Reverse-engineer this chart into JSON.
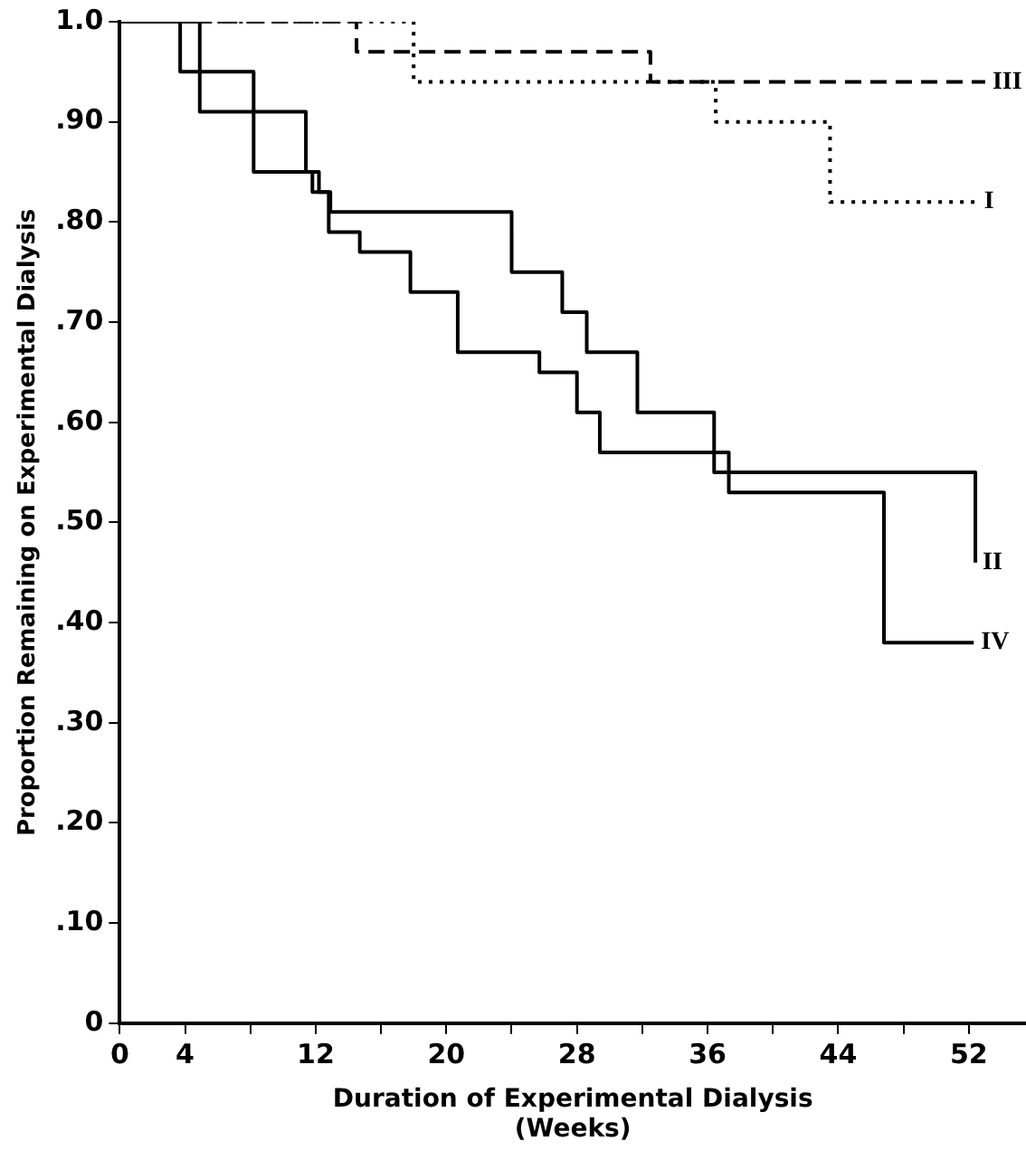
{
  "chart_data": {
    "type": "step",
    "xlabel": "Duration of Experimental Dialysis\n(Weeks)",
    "ylabel": "Proportion Remaining on Experimental Dialysis",
    "xlim": [
      0,
      55.5
    ],
    "xticks": [
      0,
      4,
      {
        "value": 8,
        "label": null
      },
      12,
      {
        "value": 16,
        "label": null
      },
      20,
      {
        "value": 24,
        "label": null
      },
      28,
      {
        "value": 32,
        "label": null
      },
      36,
      {
        "value": 40,
        "label": null
      },
      44,
      {
        "value": 48,
        "label": null
      },
      52
    ],
    "ylim": [
      0,
      1
    ],
    "yticks": [
      {
        "value": 0,
        "label": "0"
      },
      {
        "value": 0.1,
        "label": ".10"
      },
      {
        "value": 0.2,
        "label": ".20"
      },
      {
        "value": 0.3,
        "label": ".30"
      },
      {
        "value": 0.4,
        "label": ".40"
      },
      {
        "value": 0.5,
        "label": ".50"
      },
      {
        "value": 0.6,
        "label": ".60"
      },
      {
        "value": 0.7,
        "label": ".70"
      },
      {
        "value": 0.8,
        "label": ".80"
      },
      {
        "value": 0.9,
        "label": ".90"
      },
      {
        "value": 1,
        "label": "1.0"
      }
    ],
    "grid": false,
    "legend": false,
    "marker": "none",
    "series": [
      {
        "name": "I",
        "color": "#000000",
        "line_style": "dotted",
        "x": [
          0,
          18,
          36.5,
          43.5,
          52.5
        ],
        "values": [
          1,
          0.94,
          0.9,
          0.82,
          0.82
        ]
      },
      {
        "name": "II",
        "color": "#000000",
        "line_style": "solid",
        "x": [
          0,
          3.7,
          8.2,
          11.4,
          12.2,
          12.9,
          24,
          27.1,
          28.6,
          31.7,
          36.4,
          52.4
        ],
        "values": [
          1,
          0.95,
          0.91,
          0.85,
          0.83,
          0.81,
          0.75,
          0.71,
          0.67,
          0.61,
          0.55,
          0.46
        ]
      },
      {
        "name": "III",
        "color": "#000000",
        "line_style": "dashed",
        "x": [
          0,
          14.5,
          32.5,
          53
        ],
        "values": [
          1,
          0.97,
          0.94,
          0.94
        ]
      },
      {
        "name": "IV",
        "color": "#000000",
        "line_style": "solid",
        "x": [
          0,
          4.9,
          8.2,
          11.8,
          12.8,
          14.7,
          17.8,
          20.7,
          25.7,
          28,
          29.4,
          37.3,
          46.8,
          52.3
        ],
        "values": [
          1,
          0.91,
          0.85,
          0.83,
          0.79,
          0.77,
          0.73,
          0.67,
          0.65,
          0.61,
          0.57,
          0.53,
          0.38,
          0.38
        ]
      }
    ]
  }
}
